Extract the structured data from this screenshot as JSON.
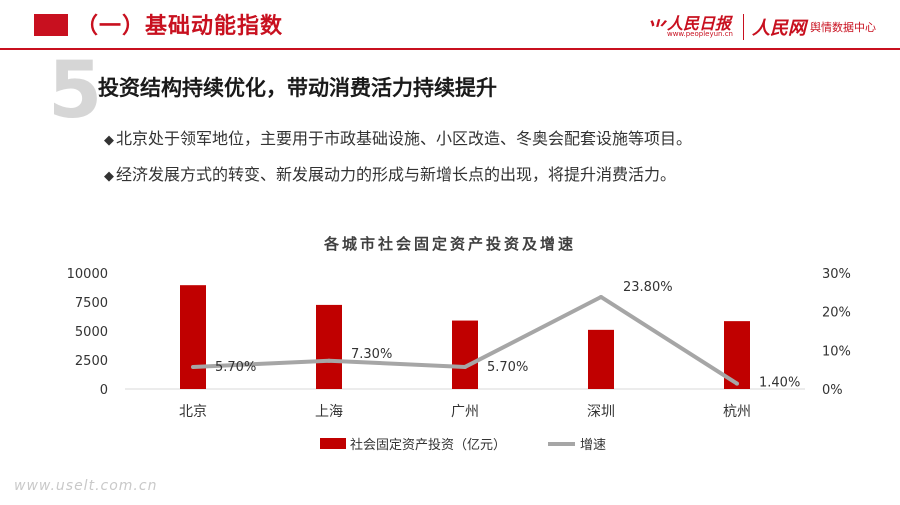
{
  "header": {
    "section_title": "（一）基础动能指数",
    "logo": {
      "primary": "人民日报",
      "primary_url": "www.peopleyun.cn",
      "secondary": "人民网",
      "center": "舆情数据中心"
    }
  },
  "slide": {
    "number": "5",
    "subtitle": "投资结构持续优化，带动消费活力持续提升",
    "bullets": [
      "北京处于领军地位，主要用于市政基础设施、小区改造、冬奥会配套设施等项目。",
      "经济发展方式的转变、新发展动力的形成与新增长点的出现，将提升消费活力。"
    ],
    "bullet_icon": "diamond-icon"
  },
  "watermark": "www.uselt.com.cn",
  "colors": {
    "accent": "#c8101f",
    "line": "#a6a6a6",
    "bar": "#c00000"
  },
  "chart_data": {
    "type": "bar",
    "title": "各城市社会固定资产投资及增速",
    "categories": [
      "北京",
      "上海",
      "广州",
      "深圳",
      "杭州"
    ],
    "series": [
      {
        "name": "社会固定资产投资（亿元）",
        "type": "bar",
        "axis": "left",
        "values": [
          8950,
          7250,
          5900,
          5100,
          5850
        ]
      },
      {
        "name": "增速",
        "type": "line",
        "axis": "right",
        "values": [
          5.7,
          7.3,
          5.7,
          23.8,
          1.4
        ],
        "labels": [
          "5.70%",
          "7.30%",
          "5.70%",
          "23.80%",
          "1.40%"
        ]
      }
    ],
    "y_left": {
      "ylim": [
        0,
        10000
      ],
      "ticks": [
        "0",
        "2500",
        "5000",
        "7500",
        "10000"
      ]
    },
    "y_right": {
      "ylim": [
        0,
        30
      ],
      "ticks": [
        "0%",
        "10%",
        "20%",
        "30%"
      ]
    },
    "legend_position": "bottom"
  }
}
